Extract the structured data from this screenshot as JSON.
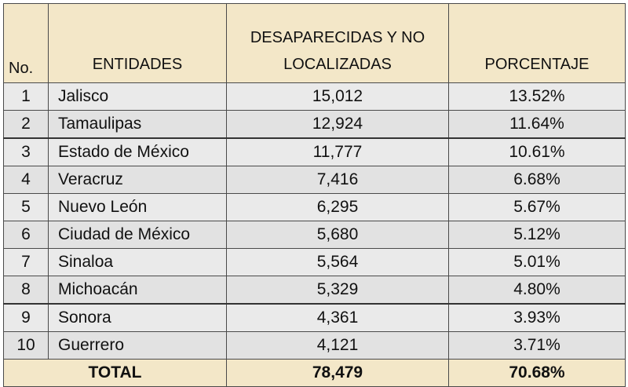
{
  "chart_data": {
    "type": "table",
    "columns": [
      "No.",
      "ENTIDADES",
      "DESAPARECIDAS Y NO LOCALIZADAS",
      "PORCENTAJE"
    ],
    "rows": [
      {
        "no": "1",
        "entidad": "Jalisco",
        "desaparecidas": "15,012",
        "porcentaje": "13.52%"
      },
      {
        "no": "2",
        "entidad": "Tamaulipas",
        "desaparecidas": "12,924",
        "porcentaje": "11.64%"
      },
      {
        "no": "3",
        "entidad": "Estado de México",
        "desaparecidas": "11,777",
        "porcentaje": "10.61%"
      },
      {
        "no": "4",
        "entidad": "Veracruz",
        "desaparecidas": "7,416",
        "porcentaje": "6.68%"
      },
      {
        "no": "5",
        "entidad": "Nuevo León",
        "desaparecidas": "6,295",
        "porcentaje": "5.67%"
      },
      {
        "no": "6",
        "entidad": "Ciudad de México",
        "desaparecidas": "5,680",
        "porcentaje": "5.12%"
      },
      {
        "no": "7",
        "entidad": "Sinaloa",
        "desaparecidas": "5,564",
        "porcentaje": "5.01%"
      },
      {
        "no": "8",
        "entidad": "Michoacán",
        "desaparecidas": "5,329",
        "porcentaje": "4.80%"
      },
      {
        "no": "9",
        "entidad": "Sonora",
        "desaparecidas": "4,361",
        "porcentaje": "3.93%"
      },
      {
        "no": "10",
        "entidad": "Guerrero",
        "desaparecidas": "4,121",
        "porcentaje": "3.71%"
      }
    ],
    "total": {
      "label": "TOTAL",
      "desaparecidas": "78,479",
      "porcentaje": "70.68%"
    }
  },
  "colors": {
    "header_bg": "#f3e7c8",
    "row_bg": "#eaeaea",
    "border": "#4a4a4a"
  }
}
